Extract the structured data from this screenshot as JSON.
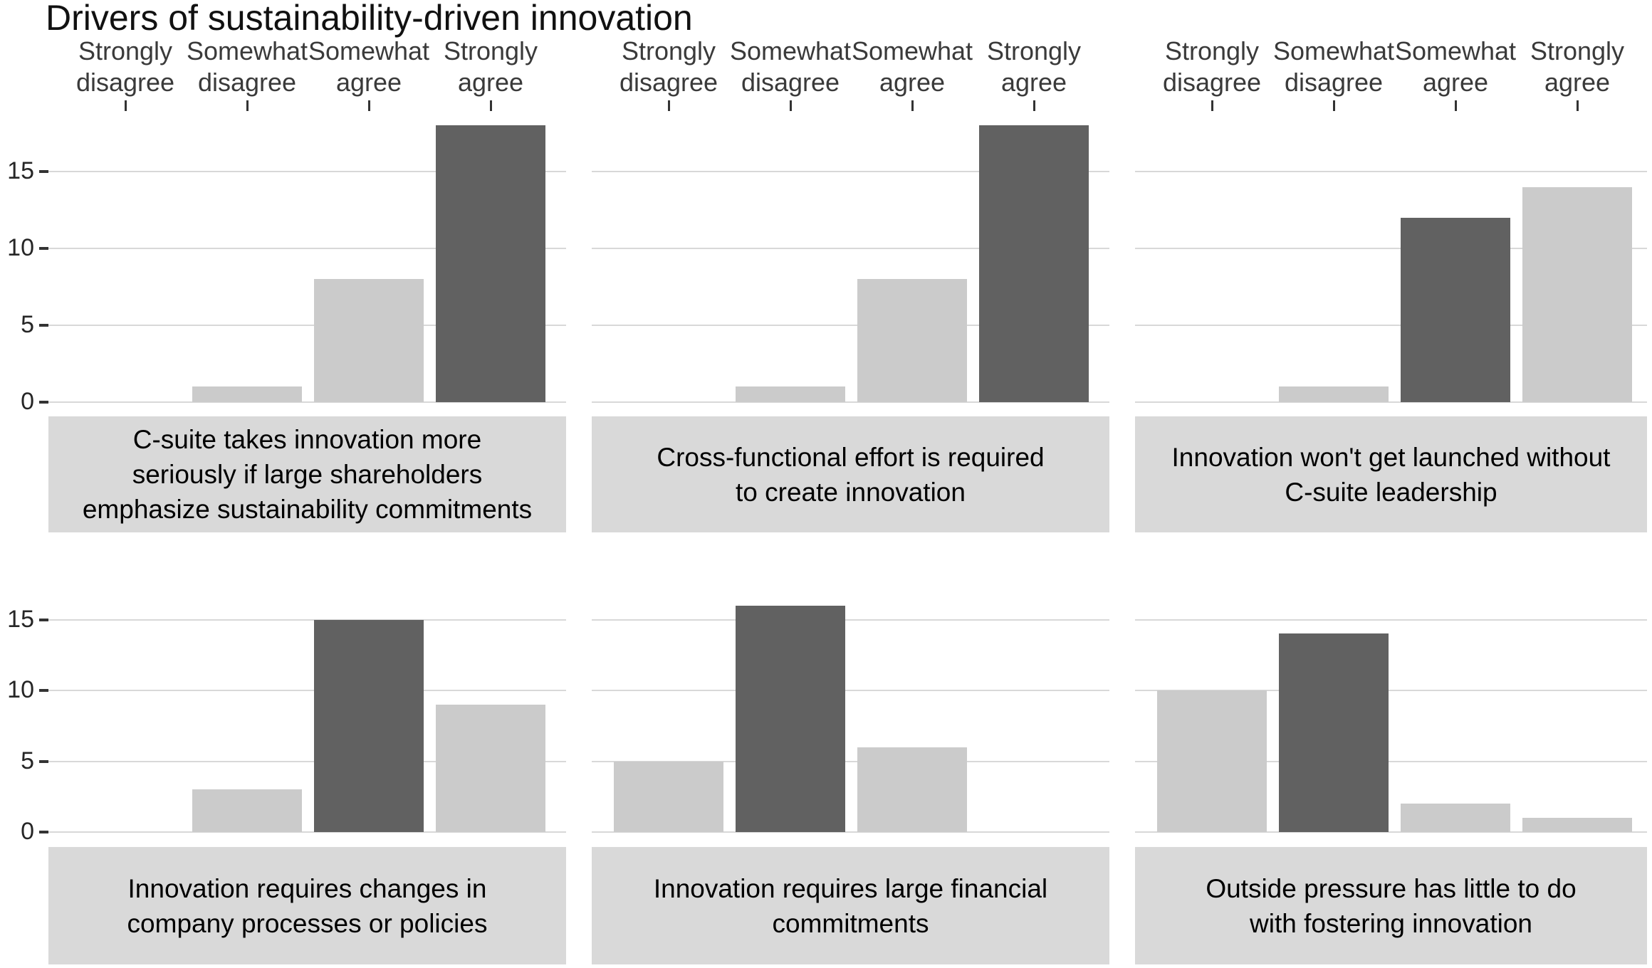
{
  "page": {
    "title": "Drivers of sustainability-driven innovation"
  },
  "chart_data": {
    "type": "bar",
    "title": "Drivers of sustainability-driven innovation",
    "layout": "2 rows x 3 columns of facets, shared category axis shown above top row only, y axis labels on left only, strip caption box below each facet",
    "categories": [
      "Strongly disagree",
      "Somewhat disagree",
      "Somewhat agree",
      "Strongly agree"
    ],
    "category_label_lines": [
      [
        "Strongly",
        "disagree"
      ],
      [
        "Somewhat",
        "disagree"
      ],
      [
        "Somewhat",
        "agree"
      ],
      [
        "Strongly",
        "agree"
      ]
    ],
    "ylabel": "",
    "xlabel": "",
    "y_ticks": [
      0,
      5,
      10,
      15
    ],
    "ylim_top_row": [
      0,
      18.6
    ],
    "ylim_bottom_row": [
      0,
      16.8
    ],
    "grid": "horizontal gridlines at 0, 5, 10, 15",
    "legend_position": "none",
    "colors": {
      "bar_light": "#cbcbcb",
      "bar_dark": "#616161",
      "strip_background": "#d9d9d9",
      "gridline": "#d8d8d8",
      "axis_text": "#262626",
      "category_text": "#3a3a3a",
      "strip_text": "#000000",
      "title_text": "#111111",
      "background": "#ffffff"
    },
    "facets": [
      {
        "row": 0,
        "col": 0,
        "label": "C-suite takes innovation more seriously if large shareholders emphasize sustainability commitments",
        "label_lines": [
          "C-suite takes innovation more",
          "seriously if large shareholders",
          "emphasize sustainability commitments"
        ],
        "values": [
          0,
          1,
          8,
          18
        ],
        "highlight_index": 3
      },
      {
        "row": 0,
        "col": 1,
        "label": "Cross-functional effort is required to create innovation",
        "label_lines": [
          "Cross-functional effort is required",
          "to create innovation"
        ],
        "values": [
          0,
          1,
          8,
          18
        ],
        "highlight_index": 3
      },
      {
        "row": 0,
        "col": 2,
        "label": "Innovation won't get launched without C-suite leadership",
        "label_lines": [
          "Innovation won't get launched without",
          "C-suite leadership"
        ],
        "values": [
          0,
          1,
          12,
          14
        ],
        "highlight_index": 2
      },
      {
        "row": 1,
        "col": 0,
        "label": "Innovation requires changes in company processes or policies",
        "label_lines": [
          "Innovation requires changes in",
          "company processes or policies"
        ],
        "values": [
          0,
          3,
          15,
          9
        ],
        "highlight_index": 2
      },
      {
        "row": 1,
        "col": 1,
        "label": "Innovation requires large financial commitments",
        "label_lines": [
          "Innovation requires large financial",
          "commitments"
        ],
        "values": [
          5,
          16,
          6,
          0
        ],
        "highlight_index": 1
      },
      {
        "row": 1,
        "col": 2,
        "label": "Outside pressure has little to do with fostering innovation",
        "label_lines": [
          "Outside pressure has little to do",
          "with fostering innovation"
        ],
        "values": [
          10,
          14,
          2,
          1
        ],
        "highlight_index": 1
      }
    ]
  }
}
